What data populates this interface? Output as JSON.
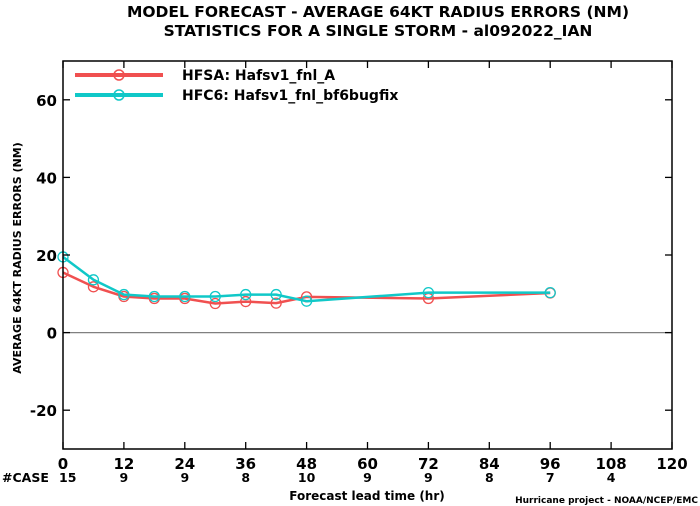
{
  "colors": {
    "hfsa": "#f05050",
    "hfc6": "#10c8c8",
    "axis": "#000000",
    "zero_line": "#808080",
    "case_text": "#10c8c8"
  },
  "chart_data": {
    "type": "line",
    "title": "MODEL FORECAST - AVERAGE 64KT RADIUS ERRORS (NM)",
    "subtitle": "STATISTICS FOR A SINGLE STORM - al092022_IAN",
    "xlabel": "Forecast lead time (hr)",
    "ylabel": "AVERAGE 64KT RADIUS ERRORS (NM)",
    "xlim": [
      0,
      120
    ],
    "ylim": [
      -30,
      70
    ],
    "xticks": [
      0,
      12,
      24,
      36,
      48,
      60,
      72,
      84,
      96,
      108,
      120
    ],
    "yticks": [
      -20,
      0,
      20,
      40,
      60
    ],
    "legend_position": "top-left",
    "series": [
      {
        "name": "HFSA: Hafsv1_fnl_A",
        "color": "#f05050",
        "x": [
          0,
          6,
          12,
          18,
          24,
          30,
          36,
          42,
          48,
          72,
          96
        ],
        "y": [
          15.5,
          11.8,
          9.3,
          8.8,
          8.8,
          7.5,
          8.0,
          7.6,
          9.2,
          8.8,
          10.2
        ]
      },
      {
        "name": "HFC6: Hafsv1_fnl_bf6bugfix",
        "color": "#10c8c8",
        "x": [
          0,
          6,
          12,
          18,
          24,
          30,
          36,
          42,
          48,
          72,
          96
        ],
        "y": [
          19.5,
          13.6,
          9.8,
          9.3,
          9.3,
          9.3,
          9.8,
          9.8,
          8.1,
          10.3,
          10.3
        ]
      }
    ],
    "case_label": "#CASE",
    "case_counts": [
      "15",
      "9",
      "9",
      "8",
      "10",
      "9",
      "9",
      "8",
      "7",
      "4"
    ],
    "case_x": [
      0,
      12,
      24,
      36,
      48,
      60,
      72,
      84,
      96,
      108
    ]
  },
  "credit": "Hurricane project - NOAA/NCEP/EMC"
}
